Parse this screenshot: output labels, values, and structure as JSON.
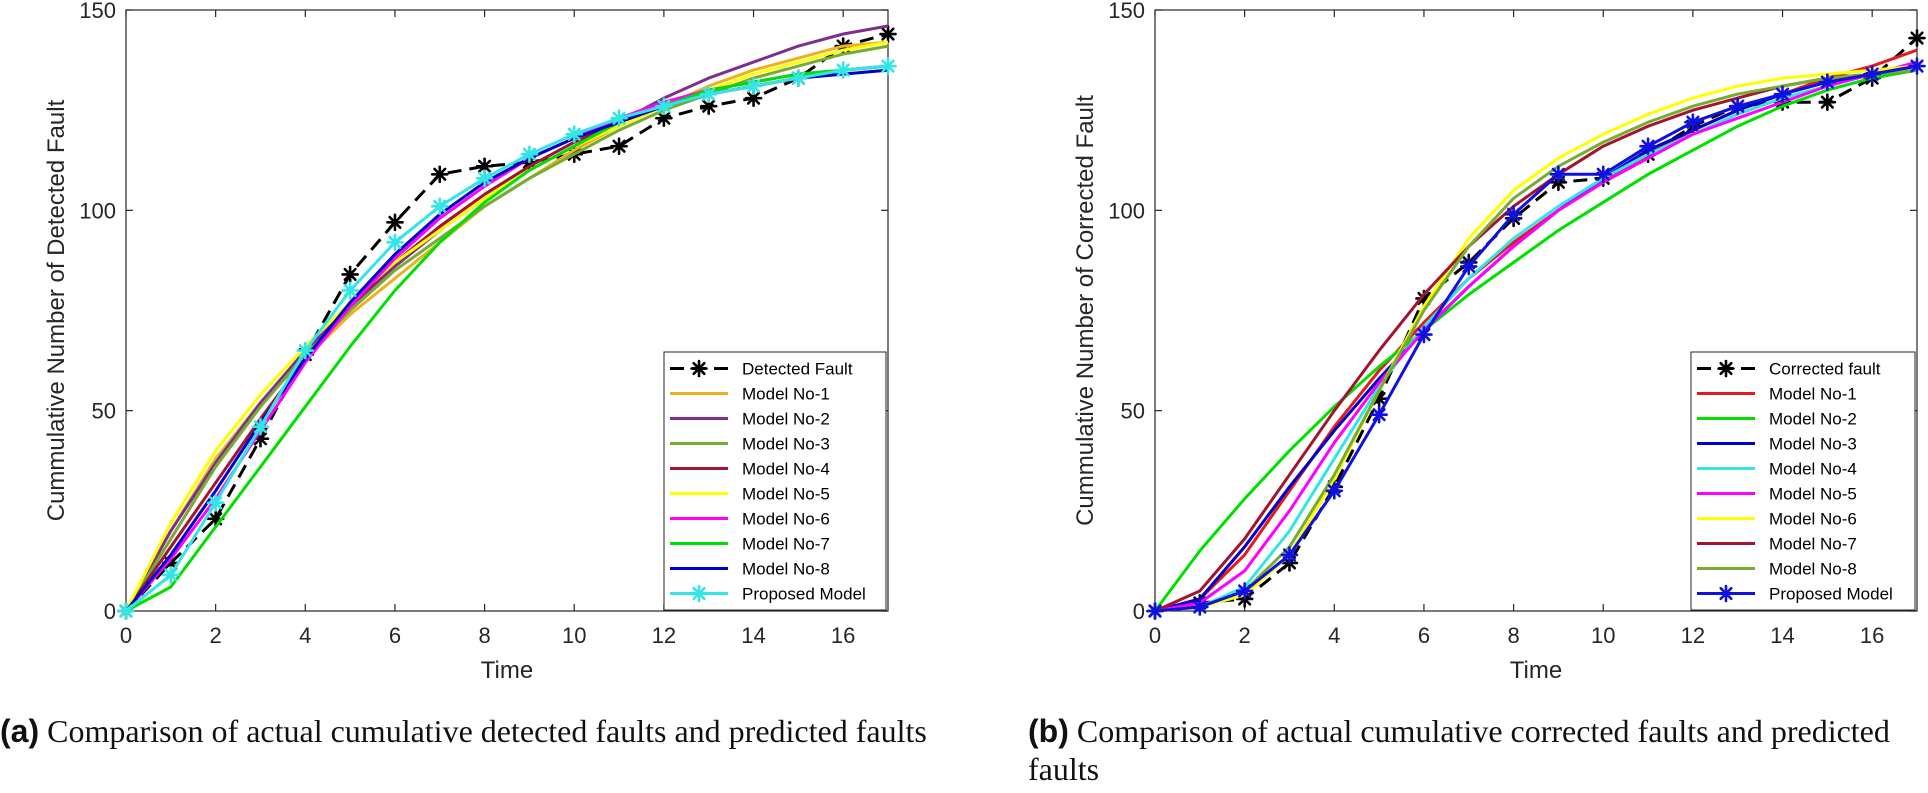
{
  "chart_data": [
    {
      "type": "line",
      "xlabel": "Time",
      "ylabel": "Cummulative Number of Detected Fault",
      "xlim": [
        0,
        17
      ],
      "ylim": [
        0,
        150
      ],
      "xticks": [
        0,
        2,
        4,
        6,
        8,
        10,
        12,
        14,
        16
      ],
      "yticks": [
        0,
        50,
        100,
        150
      ],
      "legend_position": "bottom-right",
      "caption": {
        "tag": "(a)",
        "text": " Comparison of actual cumulative detected faults and predicted faults"
      },
      "series": [
        {
          "name": "Detected Fault",
          "color": "#000000",
          "style": "dashed",
          "marker": "asterisk",
          "x": [
            0,
            1,
            2,
            3,
            4,
            5,
            6,
            7,
            8,
            9,
            10,
            11,
            12,
            13,
            14,
            15,
            16,
            17
          ],
          "y": [
            0,
            12,
            23,
            43,
            64,
            84,
            97,
            109,
            111,
            112,
            114,
            116,
            123,
            126,
            128,
            133,
            141,
            144
          ]
        },
        {
          "name": "Model No-1",
          "color": "#EDB120",
          "style": "solid",
          "marker": "none",
          "x": [
            0,
            1,
            2,
            3,
            4,
            5,
            6,
            7,
            8,
            9,
            10,
            11,
            12,
            13,
            14,
            15,
            16,
            17
          ],
          "y": [
            0,
            20,
            38,
            52,
            63,
            74,
            83,
            92,
            101,
            108,
            115,
            121,
            126,
            131,
            135,
            138,
            141,
            142
          ]
        },
        {
          "name": "Model No-2",
          "color": "#7E2F8E",
          "style": "solid",
          "marker": "none",
          "x": [
            0,
            1,
            2,
            3,
            4,
            5,
            6,
            7,
            8,
            9,
            10,
            11,
            12,
            13,
            14,
            15,
            16,
            17
          ],
          "y": [
            0,
            20,
            37,
            52,
            65,
            76,
            86,
            95,
            103,
            110,
            116,
            122,
            128,
            133,
            137,
            141,
            144,
            146
          ]
        },
        {
          "name": "Model No-3",
          "color": "#77AC30",
          "style": "solid",
          "marker": "none",
          "x": [
            0,
            1,
            2,
            3,
            4,
            5,
            6,
            7,
            8,
            9,
            10,
            11,
            12,
            13,
            14,
            15,
            16,
            17
          ],
          "y": [
            0,
            18,
            36,
            51,
            64,
            75,
            85,
            93,
            101,
            108,
            114,
            120,
            125,
            129,
            133,
            136,
            139,
            141
          ]
        },
        {
          "name": "Model No-4",
          "color": "#A2142F",
          "style": "solid",
          "marker": "none",
          "x": [
            0,
            1,
            2,
            3,
            4,
            5,
            6,
            7,
            8,
            9,
            10,
            11,
            12,
            13,
            14,
            15,
            16,
            17
          ],
          "y": [
            0,
            16,
            32,
            48,
            63,
            76,
            87,
            96,
            104,
            111,
            117,
            122,
            126,
            129,
            131,
            133,
            135,
            136
          ]
        },
        {
          "name": "Model No-5",
          "color": "#FFFF00",
          "style": "solid",
          "marker": "none",
          "x": [
            0,
            1,
            2,
            3,
            4,
            5,
            6,
            7,
            8,
            9,
            10,
            11,
            12,
            13,
            14,
            15,
            16,
            17
          ],
          "y": [
            0,
            22,
            40,
            54,
            66,
            77,
            87,
            95,
            103,
            110,
            116,
            121,
            126,
            130,
            134,
            137,
            140,
            142
          ]
        },
        {
          "name": "Model No-6",
          "color": "#FF00FF",
          "style": "solid",
          "marker": "none",
          "x": [
            0,
            1,
            2,
            3,
            4,
            5,
            6,
            7,
            8,
            9,
            10,
            11,
            12,
            13,
            14,
            15,
            16,
            17
          ],
          "y": [
            0,
            13,
            28,
            45,
            62,
            76,
            88,
            98,
            106,
            113,
            118,
            123,
            127,
            130,
            132,
            134,
            135,
            136
          ]
        },
        {
          "name": "Model No-7",
          "color": "#00E000",
          "style": "solid",
          "marker": "none",
          "x": [
            0,
            1,
            2,
            3,
            4,
            5,
            6,
            7,
            8,
            9,
            10,
            11,
            12,
            13,
            14,
            15,
            16,
            17
          ],
          "y": [
            0,
            6,
            21,
            36,
            51,
            66,
            80,
            92,
            102,
            110,
            116,
            122,
            126,
            130,
            132,
            134,
            135,
            136
          ]
        },
        {
          "name": "Model No-8",
          "color": "#0000CC",
          "style": "solid",
          "marker": "none",
          "x": [
            0,
            1,
            2,
            3,
            4,
            5,
            6,
            7,
            8,
            9,
            10,
            11,
            12,
            13,
            14,
            15,
            16,
            17
          ],
          "y": [
            0,
            14,
            30,
            47,
            63,
            77,
            89,
            99,
            107,
            113,
            118,
            122,
            126,
            129,
            131,
            133,
            134,
            135
          ]
        },
        {
          "name": "Proposed Model",
          "color": "#33E6E6",
          "style": "solid",
          "marker": "asterisk",
          "x": [
            0,
            1,
            2,
            3,
            4,
            5,
            6,
            7,
            8,
            9,
            10,
            11,
            12,
            13,
            14,
            15,
            16,
            17
          ],
          "y": [
            0,
            9,
            27,
            46,
            65,
            80,
            92,
            101,
            108,
            114,
            119,
            123,
            126,
            129,
            131,
            133,
            135,
            136
          ]
        }
      ]
    },
    {
      "type": "line",
      "xlabel": "Time",
      "ylabel": "Cummulative Number of Corrected Fault",
      "xlim": [
        0,
        17
      ],
      "ylim": [
        0,
        150
      ],
      "xticks": [
        0,
        2,
        4,
        6,
        8,
        10,
        12,
        14,
        16
      ],
      "yticks": [
        0,
        50,
        100,
        150
      ],
      "legend_position": "bottom-right",
      "caption": {
        "tag": "(b)",
        "text": " Comparison of actual cumulative corrected faults and predicted faults"
      },
      "series": [
        {
          "name": "Corrected fault",
          "color": "#000000",
          "style": "dashed",
          "marker": "asterisk",
          "x": [
            0,
            1,
            2,
            3,
            4,
            5,
            6,
            7,
            8,
            9,
            10,
            11,
            12,
            13,
            14,
            15,
            16,
            17
          ],
          "y": [
            0,
            2,
            3,
            12,
            31,
            53,
            78,
            87,
            98,
            107,
            108,
            114,
            121,
            126,
            127,
            127,
            133,
            143
          ]
        },
        {
          "name": "Model No-1",
          "color": "#E41A1C",
          "style": "solid",
          "marker": "none",
          "x": [
            0,
            1,
            2,
            3,
            4,
            5,
            6,
            7,
            8,
            9,
            10,
            11,
            12,
            13,
            14,
            15,
            16,
            17
          ],
          "y": [
            0,
            3,
            14,
            30,
            46,
            60,
            72,
            83,
            92,
            100,
            107,
            114,
            120,
            125,
            129,
            133,
            136,
            140
          ]
        },
        {
          "name": "Model No-2",
          "color": "#00E000",
          "style": "solid",
          "marker": "none",
          "x": [
            0,
            1,
            2,
            3,
            4,
            5,
            6,
            7,
            8,
            9,
            10,
            11,
            12,
            13,
            14,
            15,
            16,
            17
          ],
          "y": [
            0,
            15,
            28,
            40,
            51,
            61,
            70,
            79,
            87,
            95,
            102,
            109,
            115,
            121,
            126,
            130,
            133,
            135
          ]
        },
        {
          "name": "Model No-3",
          "color": "#0000CC",
          "style": "solid",
          "marker": "none",
          "x": [
            0,
            1,
            2,
            3,
            4,
            5,
            6,
            7,
            8,
            9,
            10,
            11,
            12,
            13,
            14,
            15,
            16,
            17
          ],
          "y": [
            0,
            3,
            16,
            31,
            45,
            58,
            70,
            81,
            91,
            100,
            108,
            115,
            120,
            125,
            129,
            132,
            134,
            136
          ]
        },
        {
          "name": "Model No-4",
          "color": "#33E6E6",
          "style": "solid",
          "marker": "none",
          "x": [
            0,
            1,
            2,
            3,
            4,
            5,
            6,
            7,
            8,
            9,
            10,
            11,
            12,
            13,
            14,
            15,
            16,
            17
          ],
          "y": [
            0,
            1,
            6,
            20,
            38,
            56,
            71,
            83,
            93,
            101,
            108,
            114,
            119,
            124,
            128,
            131,
            134,
            136
          ]
        },
        {
          "name": "Model No-5",
          "color": "#FF00FF",
          "style": "solid",
          "marker": "none",
          "x": [
            0,
            1,
            2,
            3,
            4,
            5,
            6,
            7,
            8,
            9,
            10,
            11,
            12,
            13,
            14,
            15,
            16,
            17
          ],
          "y": [
            0,
            2,
            10,
            25,
            42,
            57,
            70,
            81,
            91,
            100,
            107,
            113,
            119,
            123,
            127,
            131,
            134,
            137
          ]
        },
        {
          "name": "Model No-6",
          "color": "#FFFF00",
          "style": "solid",
          "marker": "none",
          "x": [
            0,
            1,
            2,
            3,
            4,
            5,
            6,
            7,
            8,
            9,
            10,
            11,
            12,
            13,
            14,
            15,
            16,
            17
          ],
          "y": [
            0,
            1,
            4,
            14,
            33,
            55,
            76,
            93,
            105,
            113,
            119,
            124,
            128,
            131,
            133,
            134,
            135,
            136
          ]
        },
        {
          "name": "Model No-7",
          "color": "#A2142F",
          "style": "solid",
          "marker": "none",
          "x": [
            0,
            1,
            2,
            3,
            4,
            5,
            6,
            7,
            8,
            9,
            10,
            11,
            12,
            13,
            14,
            15,
            16,
            17
          ],
          "y": [
            0,
            5,
            18,
            34,
            50,
            65,
            79,
            91,
            101,
            109,
            116,
            121,
            125,
            128,
            131,
            133,
            134,
            135
          ]
        },
        {
          "name": "Model No-8",
          "color": "#77AC30",
          "style": "solid",
          "marker": "none",
          "x": [
            0,
            1,
            2,
            3,
            4,
            5,
            6,
            7,
            8,
            9,
            10,
            11,
            12,
            13,
            14,
            15,
            16,
            17
          ],
          "y": [
            0,
            1,
            5,
            16,
            34,
            55,
            75,
            91,
            103,
            111,
            117,
            122,
            126,
            129,
            131,
            133,
            134,
            135
          ]
        },
        {
          "name": "Proposed Model",
          "color": "#1010E0",
          "style": "solid",
          "marker": "asterisk",
          "x": [
            0,
            1,
            2,
            3,
            4,
            5,
            6,
            7,
            8,
            9,
            10,
            11,
            12,
            13,
            14,
            15,
            16,
            17
          ],
          "y": [
            0,
            1,
            5,
            14,
            30,
            49,
            69,
            86,
            99,
            109,
            109,
            116,
            122,
            126,
            129,
            132,
            134,
            136
          ]
        }
      ]
    }
  ]
}
